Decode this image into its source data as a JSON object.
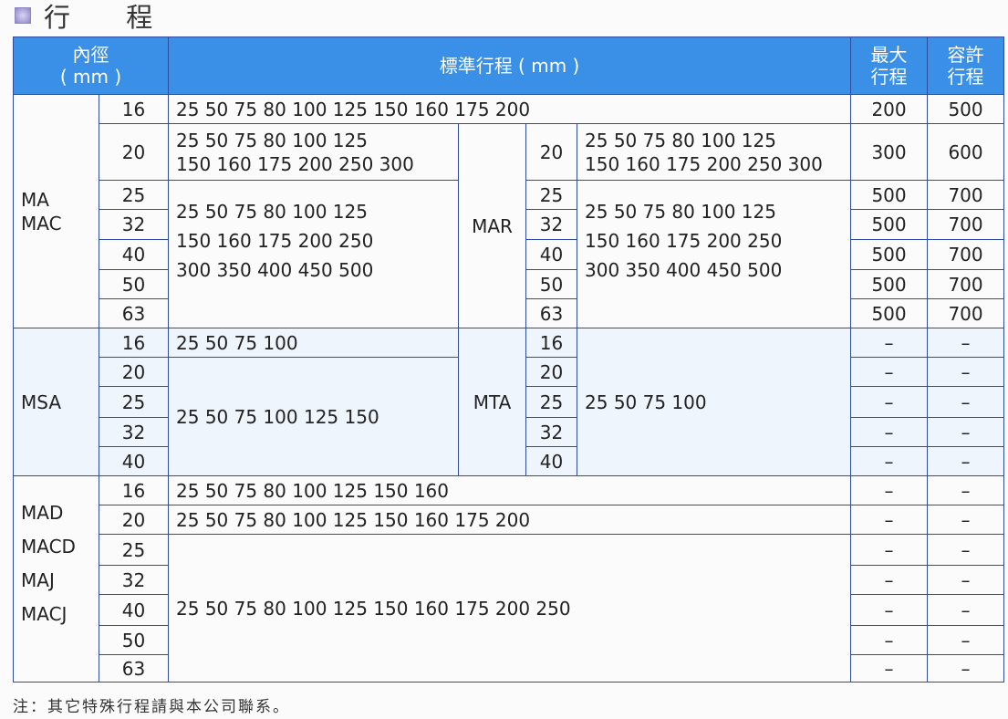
{
  "title": "行 程",
  "header": {
    "bore": "內徑",
    "bore_unit": "( mm )",
    "stroke": "標準行程 ( mm )",
    "max": "最大\n行程",
    "max_l1": "最大",
    "max_l2": "行程",
    "allow_l1": "容許",
    "allow_l2": "行程"
  },
  "ma": {
    "models_l1": "MA",
    "models_l2": "MAC",
    "s16": "25 50 75 80 100 125 150 160 175 200",
    "s20_l1": "25 50 75 80 100 125",
    "s20_l2": "150 160 175 200 250 300",
    "s25_l1": "25 50 75 80 100 125",
    "s25_l2": "150 160 175 200 250",
    "s25_l3": "300 350 400 450 500",
    "mar": "MAR",
    "mar20_l1": "25 50 75 80 100 125",
    "mar20_l2": "150 160 175 200 250 300",
    "mar25_l1": "25 50 75 80 100 125",
    "mar25_l2": "150 160 175 200 250",
    "mar25_l3": "300 350 400 450 500",
    "bores": [
      "16",
      "20",
      "25",
      "32",
      "40",
      "50",
      "63"
    ],
    "max": [
      "200",
      "300",
      "500",
      "500",
      "500",
      "500",
      "500"
    ],
    "allow": [
      "500",
      "600",
      "700",
      "700",
      "700",
      "700",
      "700"
    ]
  },
  "msa": {
    "model": "MSA",
    "s16": "25 50 75 100",
    "s20": "25 50 75 100 125 150",
    "mta": "MTA",
    "mta_s": "25 50 75 100",
    "bores": [
      "16",
      "20",
      "25",
      "32",
      "40"
    ],
    "dash": "–"
  },
  "mad": {
    "models": [
      "MAD",
      "MACD",
      "MAJ",
      "MACJ"
    ],
    "s16": "25 50 75 80 100 125 150 160",
    "s20": "25 50 75 80 100 125 150 160 175 200",
    "s25": "25 50 75 80 100 125 150 160 175 200 250",
    "bores": [
      "16",
      "20",
      "25",
      "32",
      "40",
      "50",
      "63"
    ],
    "dash": "–"
  },
  "note": "注：其它特殊行程請與本公司聯系。"
}
